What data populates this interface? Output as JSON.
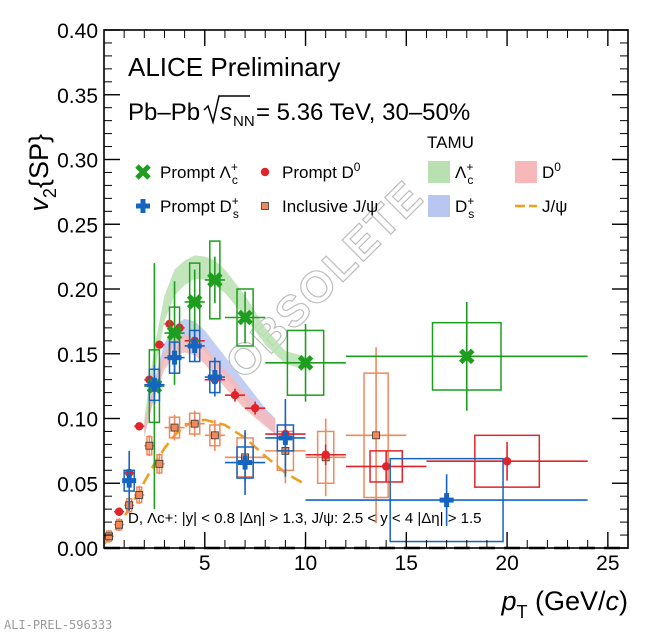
{
  "footer_id": "ALI-PREL-596333",
  "annotations": {
    "experiment": "ALICE Preliminary",
    "system_prefix": "Pb–Pb",
    "energy_suffix": "= 5.36 TeV, 30–50%",
    "cuts": "D, Λc+: |y| < 0.8 |Δη| > 1.3, J/ψ: 2.5 < y < 4 |Δη| > 1.5",
    "model_header": "TAMU",
    "watermark": "OBSOLETE"
  },
  "colors": {
    "lambda": "#1e9e1e",
    "ds": "#1565c0",
    "d0": "#e0242b",
    "jpsi": "#f08a5d",
    "tamu_lambda": "#b8e0b0",
    "tamu_ds": "#b8c6f2",
    "tamu_d0": "#f6b8b8",
    "tamu_jpsi": "#f0a020"
  },
  "chart_data": {
    "type": "scatter",
    "xlabel": "pT (GeV/c)",
    "ylabel": "v2{SP}",
    "xlim": [
      0,
      26
    ],
    "ylim": [
      0,
      0.4
    ],
    "x_ticks": [
      5,
      10,
      15,
      20,
      25
    ],
    "y_ticks": [
      0.0,
      0.05,
      0.1,
      0.15,
      0.2,
      0.25,
      0.3,
      0.35,
      0.4
    ],
    "y_tick_labels": [
      "0.00",
      "0.05",
      "0.10",
      "0.15",
      "0.20",
      "0.25",
      "0.30",
      "0.35",
      "0.40"
    ],
    "grid": false,
    "legend_position": "upper-left and upper-right",
    "series": [
      {
        "name": "Prompt Λc+",
        "key": "lambda",
        "marker": "x",
        "points": [
          {
            "x": 2.5,
            "y": 0.125,
            "xerr": 0.5,
            "yerr": 0.095,
            "syst_w": 0.25,
            "syst_h": 0.028
          },
          {
            "x": 3.5,
            "y": 0.166,
            "xerr": 0.5,
            "yerr": 0.04,
            "syst_w": 0.25,
            "syst_h": 0.02
          },
          {
            "x": 4.5,
            "y": 0.19,
            "xerr": 0.5,
            "yerr": 0.025,
            "syst_w": 0.25,
            "syst_h": 0.03
          },
          {
            "x": 5.5,
            "y": 0.207,
            "xerr": 0.5,
            "yerr": 0.018,
            "syst_w": 0.25,
            "syst_h": 0.03
          },
          {
            "x": 7.0,
            "y": 0.178,
            "xerr": 1.0,
            "yerr": 0.02,
            "syst_w": 0.4,
            "syst_h": 0.022
          },
          {
            "x": 10.0,
            "y": 0.143,
            "xerr": 2.0,
            "yerr": 0.03,
            "syst_w": 0.9,
            "syst_h": 0.025
          },
          {
            "x": 18.0,
            "y": 0.148,
            "xerr": 6.0,
            "yerr": 0.042,
            "syst_w": 1.7,
            "syst_h": 0.026
          }
        ]
      },
      {
        "name": "Prompt Ds+",
        "key": "ds",
        "marker": "cross",
        "points": [
          {
            "x": 1.25,
            "y": 0.052,
            "xerr": 0.25,
            "yerr": 0.023,
            "syst_w": 0.25,
            "syst_h": 0.008
          },
          {
            "x": 2.5,
            "y": 0.126,
            "xerr": 0.5,
            "yerr": 0.015,
            "syst_w": 0.25,
            "syst_h": 0.012
          },
          {
            "x": 3.5,
            "y": 0.147,
            "xerr": 0.5,
            "yerr": 0.012,
            "syst_w": 0.25,
            "syst_h": 0.012
          },
          {
            "x": 4.5,
            "y": 0.156,
            "xerr": 0.5,
            "yerr": 0.012,
            "syst_w": 0.25,
            "syst_h": 0.012
          },
          {
            "x": 5.5,
            "y": 0.132,
            "xerr": 0.5,
            "yerr": 0.015,
            "syst_w": 0.25,
            "syst_h": 0.012
          },
          {
            "x": 7.0,
            "y": 0.066,
            "xerr": 1.0,
            "yerr": 0.025,
            "syst_w": 0.4,
            "syst_h": 0.012
          },
          {
            "x": 9.0,
            "y": 0.085,
            "xerr": 1.0,
            "yerr": 0.03,
            "syst_w": 0.4,
            "syst_h": 0.01
          },
          {
            "x": 17.0,
            "y": 0.037,
            "xerr": 7.0,
            "yerr": 0.02,
            "syst_w": 2.8,
            "syst_h": 0.032
          }
        ]
      },
      {
        "name": "Prompt D0",
        "key": "d0",
        "marker": "circle",
        "points": [
          {
            "x": 0.75,
            "y": 0.028,
            "xerr": 0.25,
            "yerr": 0.003,
            "syst_w": 0,
            "syst_h": 0
          },
          {
            "x": 1.25,
            "y": 0.058,
            "xerr": 0.25,
            "yerr": 0.003,
            "syst_w": 0,
            "syst_h": 0
          },
          {
            "x": 1.75,
            "y": 0.094,
            "xerr": 0.25,
            "yerr": 0.003,
            "syst_w": 0,
            "syst_h": 0
          },
          {
            "x": 2.25,
            "y": 0.13,
            "xerr": 0.25,
            "yerr": 0.003,
            "syst_w": 0,
            "syst_h": 0
          },
          {
            "x": 2.75,
            "y": 0.157,
            "xerr": 0.25,
            "yerr": 0.003,
            "syst_w": 0,
            "syst_h": 0
          },
          {
            "x": 3.25,
            "y": 0.173,
            "xerr": 0.25,
            "yerr": 0.003,
            "syst_w": 0,
            "syst_h": 0
          },
          {
            "x": 3.75,
            "y": 0.17,
            "xerr": 0.25,
            "yerr": 0.003,
            "syst_w": 0,
            "syst_h": 0
          },
          {
            "x": 4.5,
            "y": 0.16,
            "xerr": 0.5,
            "yerr": 0.004,
            "syst_w": 0,
            "syst_h": 0
          },
          {
            "x": 5.5,
            "y": 0.13,
            "xerr": 0.5,
            "yerr": 0.004,
            "syst_w": 0,
            "syst_h": 0
          },
          {
            "x": 6.5,
            "y": 0.118,
            "xerr": 0.5,
            "yerr": 0.005,
            "syst_w": 0,
            "syst_h": 0
          },
          {
            "x": 7.5,
            "y": 0.108,
            "xerr": 0.5,
            "yerr": 0.005,
            "syst_w": 0,
            "syst_h": 0
          },
          {
            "x": 9.0,
            "y": 0.088,
            "xerr": 1.0,
            "yerr": 0.006,
            "syst_w": 0,
            "syst_h": 0
          },
          {
            "x": 11.0,
            "y": 0.072,
            "xerr": 1.0,
            "yerr": 0.008,
            "syst_w": 0,
            "syst_h": 0
          },
          {
            "x": 14.0,
            "y": 0.063,
            "xerr": 2.0,
            "yerr": 0.012,
            "syst_w": 0.8,
            "syst_h": 0.012
          },
          {
            "x": 20.0,
            "y": 0.067,
            "xerr": 4.0,
            "yerr": 0.015,
            "syst_w": 1.6,
            "syst_h": 0.02
          }
        ]
      },
      {
        "name": "Inclusive J/ψ",
        "key": "jpsi",
        "marker": "square",
        "points": [
          {
            "x": 0.25,
            "y": 0.009,
            "xerr": 0.25,
            "yerr": 0.005,
            "syst_w": 0.12,
            "syst_h": 0.004
          },
          {
            "x": 0.75,
            "y": 0.018,
            "xerr": 0.25,
            "yerr": 0.005,
            "syst_w": 0.12,
            "syst_h": 0.004
          },
          {
            "x": 1.25,
            "y": 0.033,
            "xerr": 0.25,
            "yerr": 0.006,
            "syst_w": 0.12,
            "syst_h": 0.005
          },
          {
            "x": 1.75,
            "y": 0.041,
            "xerr": 0.25,
            "yerr": 0.007,
            "syst_w": 0.12,
            "syst_h": 0.006
          },
          {
            "x": 2.25,
            "y": 0.079,
            "xerr": 0.25,
            "yerr": 0.008,
            "syst_w": 0.12,
            "syst_h": 0.007
          },
          {
            "x": 2.75,
            "y": 0.065,
            "xerr": 0.25,
            "yerr": 0.008,
            "syst_w": 0.12,
            "syst_h": 0.007
          },
          {
            "x": 3.5,
            "y": 0.093,
            "xerr": 0.5,
            "yerr": 0.01,
            "syst_w": 0.25,
            "syst_h": 0.008
          },
          {
            "x": 4.5,
            "y": 0.096,
            "xerr": 0.5,
            "yerr": 0.01,
            "syst_w": 0.25,
            "syst_h": 0.008
          },
          {
            "x": 5.5,
            "y": 0.087,
            "xerr": 0.5,
            "yerr": 0.012,
            "syst_w": 0.25,
            "syst_h": 0.008
          },
          {
            "x": 7.0,
            "y": 0.07,
            "xerr": 1.0,
            "yerr": 0.02,
            "syst_w": 0.4,
            "syst_h": 0.015
          },
          {
            "x": 9.0,
            "y": 0.075,
            "xerr": 1.0,
            "yerr": 0.025,
            "syst_w": 0.4,
            "syst_h": 0.015
          },
          {
            "x": 11.0,
            "y": 0.07,
            "xerr": 1.0,
            "yerr": 0.03,
            "syst_w": 0.4,
            "syst_h": 0.02
          },
          {
            "x": 13.5,
            "y": 0.087,
            "xerr": 1.5,
            "yerr": 0.068,
            "syst_w": 0.6,
            "syst_h": 0.048
          }
        ]
      }
    ],
    "model_bands": [
      {
        "name": "TAMU Λc+",
        "key": "tamu_lambda",
        "upper": [
          [
            2,
            0.1
          ],
          [
            2.5,
            0.155
          ],
          [
            3,
            0.195
          ],
          [
            3.5,
            0.215
          ],
          [
            4,
            0.222
          ],
          [
            4.5,
            0.226
          ],
          [
            5,
            0.225
          ],
          [
            5.5,
            0.222
          ],
          [
            6,
            0.215
          ],
          [
            7,
            0.195
          ],
          [
            8,
            0.17
          ],
          [
            9,
            0.152
          ],
          [
            10,
            0.148
          ]
        ],
        "lower": [
          [
            2,
            0.09
          ],
          [
            2.5,
            0.135
          ],
          [
            3,
            0.175
          ],
          [
            3.5,
            0.195
          ],
          [
            4,
            0.203
          ],
          [
            4.5,
            0.208
          ],
          [
            5,
            0.207
          ],
          [
            5.5,
            0.203
          ],
          [
            6,
            0.197
          ],
          [
            7,
            0.178
          ],
          [
            8,
            0.157
          ],
          [
            9,
            0.142
          ],
          [
            10,
            0.138
          ]
        ]
      },
      {
        "name": "TAMU Ds+",
        "key": "tamu_ds",
        "upper": [
          [
            2,
            0.095
          ],
          [
            2.5,
            0.13
          ],
          [
            3,
            0.158
          ],
          [
            3.5,
            0.172
          ],
          [
            4,
            0.177
          ],
          [
            4.5,
            0.175
          ],
          [
            5,
            0.168
          ],
          [
            6,
            0.148
          ],
          [
            7,
            0.128
          ],
          [
            8,
            0.108
          ],
          [
            8.5,
            0.1
          ]
        ],
        "lower": [
          [
            2,
            0.085
          ],
          [
            2.5,
            0.118
          ],
          [
            3,
            0.144
          ],
          [
            3.5,
            0.158
          ],
          [
            4,
            0.162
          ],
          [
            4.5,
            0.16
          ],
          [
            5,
            0.152
          ],
          [
            6,
            0.133
          ],
          [
            7,
            0.112
          ],
          [
            8,
            0.095
          ],
          [
            8.5,
            0.088
          ]
        ]
      },
      {
        "name": "TAMU D0",
        "key": "tamu_d0",
        "upper": [
          [
            2,
            0.097
          ],
          [
            2.5,
            0.128
          ],
          [
            3,
            0.152
          ],
          [
            3.5,
            0.162
          ],
          [
            4,
            0.165
          ],
          [
            4.5,
            0.163
          ],
          [
            5,
            0.156
          ],
          [
            6,
            0.138
          ],
          [
            7,
            0.12
          ],
          [
            8,
            0.106
          ],
          [
            8.5,
            0.1
          ]
        ],
        "lower": [
          [
            2,
            0.087
          ],
          [
            2.5,
            0.116
          ],
          [
            3,
            0.138
          ],
          [
            3.5,
            0.148
          ],
          [
            4,
            0.151
          ],
          [
            4.5,
            0.149
          ],
          [
            5,
            0.142
          ],
          [
            6,
            0.124
          ],
          [
            7,
            0.107
          ],
          [
            8,
            0.094
          ],
          [
            8.5,
            0.088
          ]
        ]
      }
    ],
    "model_lines": [
      {
        "name": "TAMU J/ψ",
        "key": "tamu_jpsi",
        "points": [
          [
            0,
            0.003
          ],
          [
            0.5,
            0.012
          ],
          [
            1,
            0.024
          ],
          [
            1.5,
            0.037
          ],
          [
            2,
            0.051
          ],
          [
            2.5,
            0.065
          ],
          [
            3,
            0.077
          ],
          [
            3.5,
            0.087
          ],
          [
            4,
            0.094
          ],
          [
            4.5,
            0.098
          ],
          [
            5,
            0.099
          ],
          [
            6,
            0.095
          ],
          [
            7,
            0.085
          ],
          [
            8,
            0.071
          ],
          [
            9,
            0.058
          ],
          [
            10,
            0.049
          ]
        ]
      }
    ]
  }
}
